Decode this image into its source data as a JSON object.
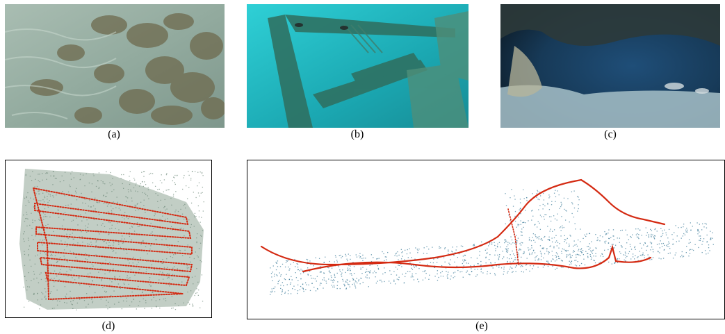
{
  "figure": {
    "panels": [
      {
        "id": "a",
        "label": "(a)",
        "kind": "photo",
        "scene": "shallow-seafloor-rocks-sand"
      },
      {
        "id": "b",
        "label": "(b)",
        "kind": "photo",
        "scene": "shipwreck-deck-turquoise-water"
      },
      {
        "id": "c",
        "label": "(c)",
        "kind": "photo",
        "scene": "underwater-cave-entrance"
      },
      {
        "id": "d",
        "label": "(d)",
        "kind": "point-cloud",
        "scene": "seafloor-reconstruction-lawnmower-trajectory"
      },
      {
        "id": "e",
        "label": "(e)",
        "kind": "point-cloud",
        "scene": "wreck-reconstruction-trajectory"
      }
    ],
    "colors": {
      "trajectory": "#d42a12",
      "cloud_d": "#6f8a7a",
      "cloud_e": "#3d7c9a",
      "photo_a": "#8da59a",
      "photo_b": "#1fb3bd",
      "photo_c": "#1b3550"
    }
  }
}
